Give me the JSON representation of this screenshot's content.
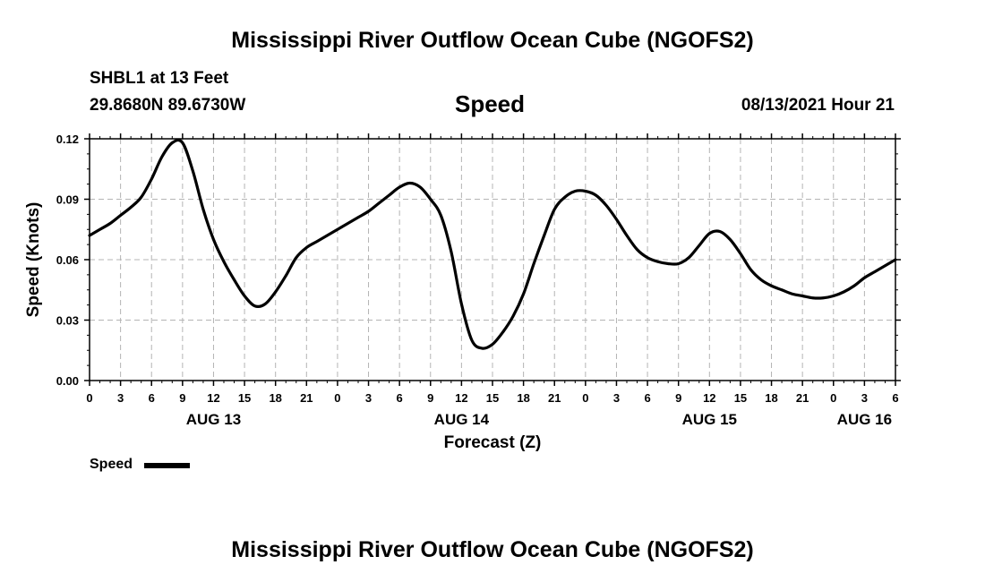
{
  "title": "Mississippi River Outflow Ocean Cube (NGOFS2)",
  "footer_title": "Mississippi River Outflow Ocean Cube (NGOFS2)",
  "station": "SHBL1 at 13 Feet",
  "coordinates": "29.8680N  89.6730W",
  "variable_title": "Speed",
  "datetime": "08/13/2021 Hour 21",
  "legend": {
    "label": "Speed",
    "color": "#000000"
  },
  "chart_data": {
    "type": "line",
    "xlabel": "Forecast (Z)",
    "ylabel": "Speed (Knots)",
    "x_unit": "hours",
    "xlim": [
      0,
      78
    ],
    "ylim": [
      0,
      0.12
    ],
    "yticks": [
      "0.00",
      "0.03",
      "0.06",
      "0.09",
      "0.12"
    ],
    "x_tick_labels": [
      "0",
      "3",
      "6",
      "9",
      "12",
      "15",
      "18",
      "21",
      "0",
      "3",
      "6",
      "9",
      "12",
      "15",
      "18",
      "21",
      "0",
      "3",
      "6",
      "9",
      "12",
      "15",
      "18",
      "21",
      "0",
      "3",
      "6"
    ],
    "date_labels": [
      {
        "label": "AUG 13",
        "hour": 12
      },
      {
        "label": "AUG 14",
        "hour": 36
      },
      {
        "label": "AUG 15",
        "hour": 60
      },
      {
        "label": "AUG 16",
        "hour": 75
      }
    ],
    "grid": true,
    "series": [
      {
        "name": "Speed",
        "color": "#000000",
        "x": [
          0,
          1,
          2,
          3,
          4,
          5,
          6,
          7,
          8,
          9,
          10,
          11,
          12,
          13,
          14,
          15,
          16,
          17,
          18,
          19,
          20,
          21,
          22,
          23,
          24,
          25,
          26,
          27,
          28,
          29,
          30,
          31,
          32,
          33,
          34,
          35,
          36,
          37,
          38,
          39,
          40,
          41,
          42,
          43,
          44,
          45,
          46,
          47,
          48,
          49,
          50,
          51,
          52,
          53,
          54,
          55,
          56,
          57,
          58,
          59,
          60,
          61,
          62,
          63,
          64,
          65,
          66,
          67,
          68,
          69,
          70,
          71,
          72,
          73,
          74,
          75,
          76,
          77,
          78
        ],
        "values": [
          0.072,
          0.075,
          0.078,
          0.082,
          0.086,
          0.091,
          0.1,
          0.111,
          0.118,
          0.118,
          0.104,
          0.085,
          0.07,
          0.059,
          0.05,
          0.042,
          0.037,
          0.038,
          0.044,
          0.052,
          0.061,
          0.066,
          0.069,
          0.072,
          0.075,
          0.078,
          0.081,
          0.084,
          0.088,
          0.092,
          0.096,
          0.098,
          0.096,
          0.09,
          0.082,
          0.064,
          0.038,
          0.02,
          0.016,
          0.018,
          0.024,
          0.032,
          0.043,
          0.058,
          0.072,
          0.085,
          0.091,
          0.094,
          0.094,
          0.092,
          0.087,
          0.08,
          0.072,
          0.065,
          0.061,
          0.059,
          0.058,
          0.058,
          0.061,
          0.067,
          0.073,
          0.074,
          0.07,
          0.063,
          0.055,
          0.05,
          0.047,
          0.045,
          0.043,
          0.042,
          0.041,
          0.041,
          0.042,
          0.044,
          0.047,
          0.051,
          0.054,
          0.057,
          0.06
        ]
      }
    ]
  }
}
